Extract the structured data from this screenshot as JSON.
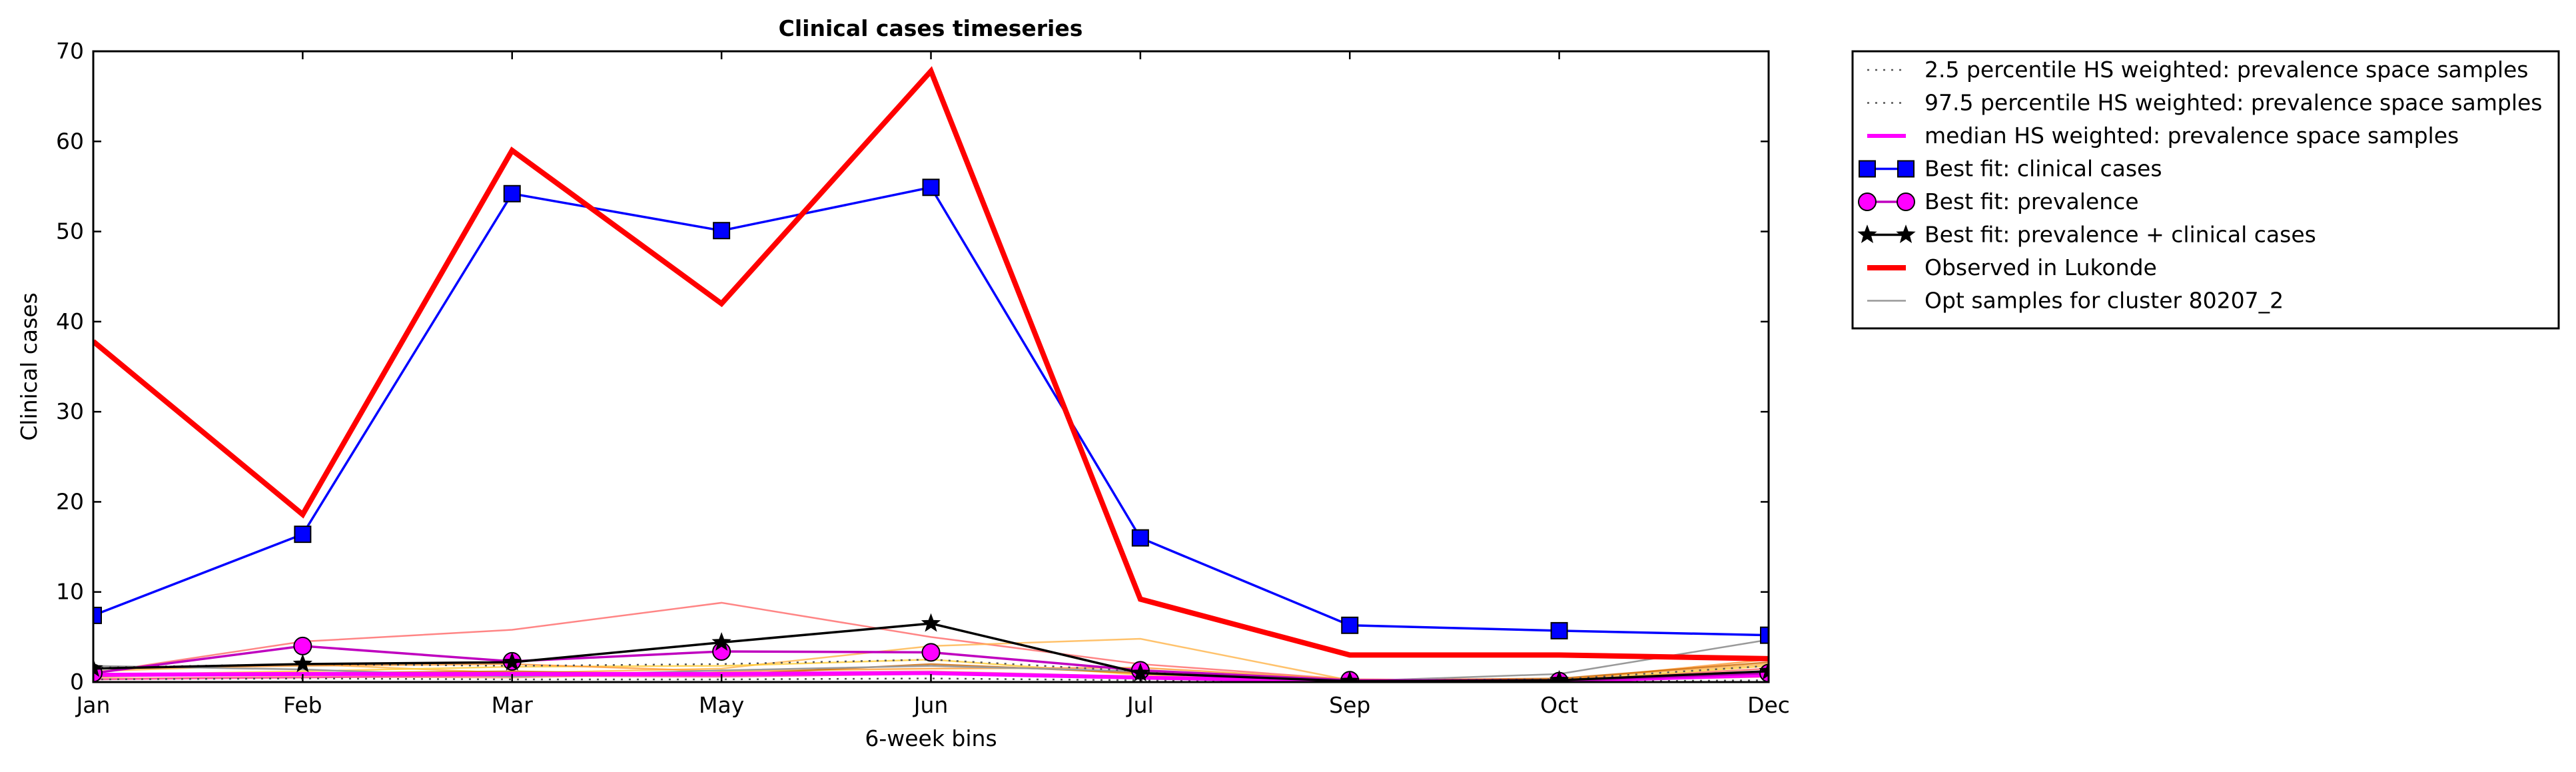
{
  "chart_data": {
    "type": "line",
    "title": "Clinical cases timeseries",
    "xlabel": "6-week bins",
    "ylabel": "Clinical cases",
    "categories": [
      "Jan",
      "Feb",
      "Mar",
      "May",
      "Jun",
      "Jul",
      "Sep",
      "Oct",
      "Dec"
    ],
    "ylim": [
      0,
      70
    ],
    "yticks": [
      0,
      10,
      20,
      30,
      40,
      50,
      60,
      70
    ],
    "grid": false,
    "legend_position": "outside-right",
    "series": [
      {
        "name": "2.5 percentile HS weighted: prevalence space samples",
        "style": "dotted",
        "color": "#555555",
        "values": [
          0.3,
          0.4,
          0.3,
          0.3,
          0.4,
          0.2,
          0.05,
          0.05,
          0.2
        ]
      },
      {
        "name": "97.5 percentile HS weighted: prevalence space samples",
        "style": "dotted",
        "color": "#555555",
        "values": [
          1.6,
          2.0,
          1.8,
          2.0,
          2.5,
          1.2,
          0.2,
          0.3,
          1.8
        ]
      },
      {
        "name": "median HS weighted: prevalence space samples",
        "style": "solid",
        "color": "#ff00ff",
        "values": [
          0.8,
          0.9,
          0.9,
          0.9,
          1.0,
          0.5,
          0.1,
          0.1,
          0.8
        ]
      },
      {
        "name": "Best fit: clinical cases",
        "style": "solid",
        "color": "#0000ff",
        "marker": "square",
        "values": [
          7.4,
          16.4,
          54.2,
          50.1,
          54.9,
          16.0,
          6.3,
          5.7,
          5.2
        ]
      },
      {
        "name": "Best fit: prevalence",
        "style": "solid",
        "color": "#bf00bf",
        "marker": "circle",
        "values": [
          1.0,
          4.0,
          2.3,
          3.4,
          3.3,
          1.3,
          0.2,
          0.1,
          1.0
        ]
      },
      {
        "name": "Best fit: prevalence + clinical cases",
        "style": "solid",
        "color": "#000000",
        "marker": "star",
        "values": [
          1.5,
          2.0,
          2.2,
          4.4,
          6.5,
          1.0,
          0.1,
          0.2,
          1.2
        ]
      },
      {
        "name": "Observed in Lukonde",
        "style": "solid",
        "color": "#ff0000",
        "values": [
          37.8,
          18.6,
          59.0,
          42.0,
          67.8,
          9.2,
          3.0,
          3.0,
          2.6
        ]
      },
      {
        "name": "Opt samples for cluster 80207_2",
        "style": "solid",
        "color": "#999999",
        "values": [
          1.8,
          1.4,
          0.6,
          1.3,
          1.8,
          1.2,
          0.1,
          0.9,
          4.7
        ]
      }
    ],
    "background_samples": [
      {
        "color": "#ff6666",
        "values": [
          1.0,
          4.5,
          5.8,
          8.8,
          5.0,
          2.0,
          0.3,
          0.2,
          1.5
        ]
      },
      {
        "color": "#ffb347",
        "values": [
          1.2,
          2.0,
          1.0,
          1.5,
          4.0,
          4.8,
          0.2,
          0.3,
          2.0
        ]
      },
      {
        "color": "#ffcc33",
        "values": [
          0.8,
          1.2,
          1.7,
          1.8,
          2.5,
          0.8,
          0.1,
          0.1,
          1.8
        ]
      },
      {
        "color": "#ff9933",
        "values": [
          1.5,
          1.8,
          2.0,
          1.2,
          1.5,
          1.6,
          0.3,
          0.2,
          2.5
        ]
      },
      {
        "color": "#cc6600",
        "values": [
          0.6,
          1.0,
          1.2,
          0.8,
          2.0,
          1.0,
          0.2,
          0.4,
          2.2
        ]
      },
      {
        "color": "#ffa07a",
        "values": [
          0.4,
          0.6,
          0.5,
          1.0,
          1.2,
          0.6,
          0.1,
          0.1,
          1.0
        ]
      },
      {
        "color": "#ff3399",
        "values": [
          0.3,
          0.5,
          0.7,
          0.6,
          0.9,
          0.5,
          0.1,
          0.1,
          0.6
        ]
      }
    ]
  }
}
